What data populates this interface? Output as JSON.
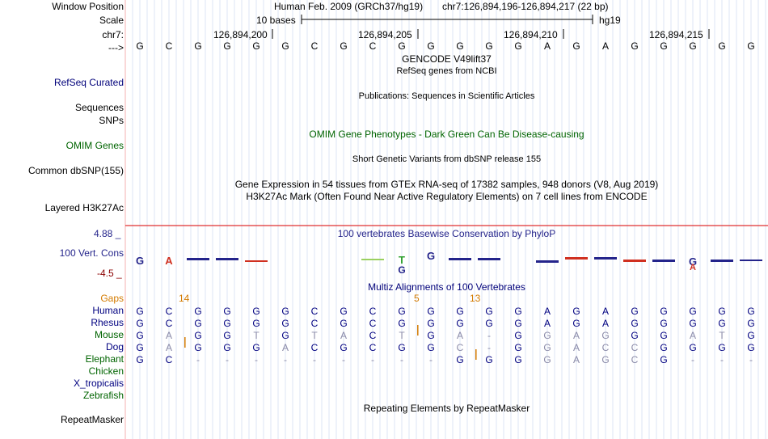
{
  "labels": {
    "window_position": "Window Position",
    "scale": "Scale",
    "chrom": "chr7:",
    "strand": "--->",
    "refseq_curated": "RefSeq Curated",
    "sequences": "Sequences",
    "snps": "SNPs",
    "omim_genes": "OMIM Genes",
    "common_dbsnp": "Common dbSNP(155)",
    "layered_h3k27ac": "Layered H3K27Ac",
    "vert_cons": "100 Vert. Cons",
    "gaps": "Gaps",
    "repeatmasker": "RepeatMasker"
  },
  "ruler": {
    "assembly": "Human Feb. 2009 (GRCh37/hg19)",
    "position": "chr7:126,894,196-126,894,217 (22 bp)",
    "scale_text": "10 bases",
    "db": "hg19",
    "coords": [
      "126,894,200",
      "126,894,205",
      "126,894,210",
      "126,894,215"
    ]
  },
  "bases": [
    "G",
    "C",
    "G",
    "G",
    "G",
    "G",
    "C",
    "G",
    "C",
    "G",
    "G",
    "G",
    "G",
    "G",
    "A",
    "G",
    "A",
    "G",
    "G",
    "G",
    "G",
    "G"
  ],
  "tracks": {
    "gencode": "GENCODE V49lift37",
    "refseq": "RefSeq genes from NCBI",
    "publications": "Publications: Sequences in Scientific Articles",
    "omim": "OMIM Gene Phenotypes - Dark Green Can Be Disease-causing",
    "short_variants": "Short Genetic Variants from dbSNP release 155",
    "gtex": "Gene Expression in 54 tissues from GTEx RNA-seq of 17382 samples, 948 donors (V8, Aug 2019)",
    "h3k27ac": "H3K27Ac Mark (Often Found Near Active Regulatory Elements) on 7 cell lines from ENCODE",
    "phylop": "100 vertebrates Basewise Conservation by PhyloP",
    "multiz": "Multiz Alignments of 100 Vertebrates",
    "repeat": "Repeating Elements by RepeatMasker"
  },
  "phylop_scale": {
    "max": "4.88 _",
    "min": "-4.5 _"
  },
  "gap_counts": [
    "14",
    "5",
    "13"
  ],
  "species": [
    {
      "name": "Human",
      "color": "#000080",
      "seq": [
        "G",
        "C",
        "G",
        "G",
        "G",
        "G",
        "C",
        "G",
        "C",
        "G",
        "G",
        "G",
        "G",
        "G",
        "A",
        "G",
        "A",
        "G",
        "G",
        "G",
        "G",
        "G"
      ]
    },
    {
      "name": "Rhesus",
      "color": "#000080",
      "seq": [
        "G",
        "C",
        "G",
        "G",
        "G",
        "G",
        "C",
        "G",
        "C",
        "G",
        "G",
        "G",
        "G",
        "G",
        "A",
        "G",
        "A",
        "G",
        "G",
        "G",
        "G",
        "G"
      ]
    },
    {
      "name": "Mouse",
      "color": "#006400",
      "seq": [
        "G",
        "A",
        "G",
        "G",
        "T",
        "G",
        "T",
        "A",
        "C",
        "T",
        "G",
        "A",
        "-",
        "G",
        "G",
        "A",
        "G",
        "G",
        "G",
        "A",
        "T",
        "G"
      ]
    },
    {
      "name": "Dog",
      "color": "#000080",
      "seq": [
        "G",
        "A",
        "G",
        "G",
        "G",
        "A",
        "C",
        "G",
        "C",
        "G",
        "G",
        "C",
        "-",
        "G",
        "G",
        "A",
        "C",
        "C",
        "G",
        "G",
        "G",
        "G"
      ]
    },
    {
      "name": "Elephant",
      "color": "#006400",
      "seq": [
        "G",
        "C",
        "-",
        "-",
        "-",
        "-",
        "-",
        "-",
        "-",
        "-",
        "-",
        "G",
        "G",
        "G",
        "G",
        "A",
        "G",
        "C",
        "G",
        "-",
        "-",
        "-"
      ]
    },
    {
      "name": "Chicken",
      "color": "#006400",
      "seq": []
    },
    {
      "name": "X_tropicalis",
      "color": "#000080",
      "seq": []
    },
    {
      "name": "Zebrafish",
      "color": "#006400",
      "seq": []
    }
  ]
}
